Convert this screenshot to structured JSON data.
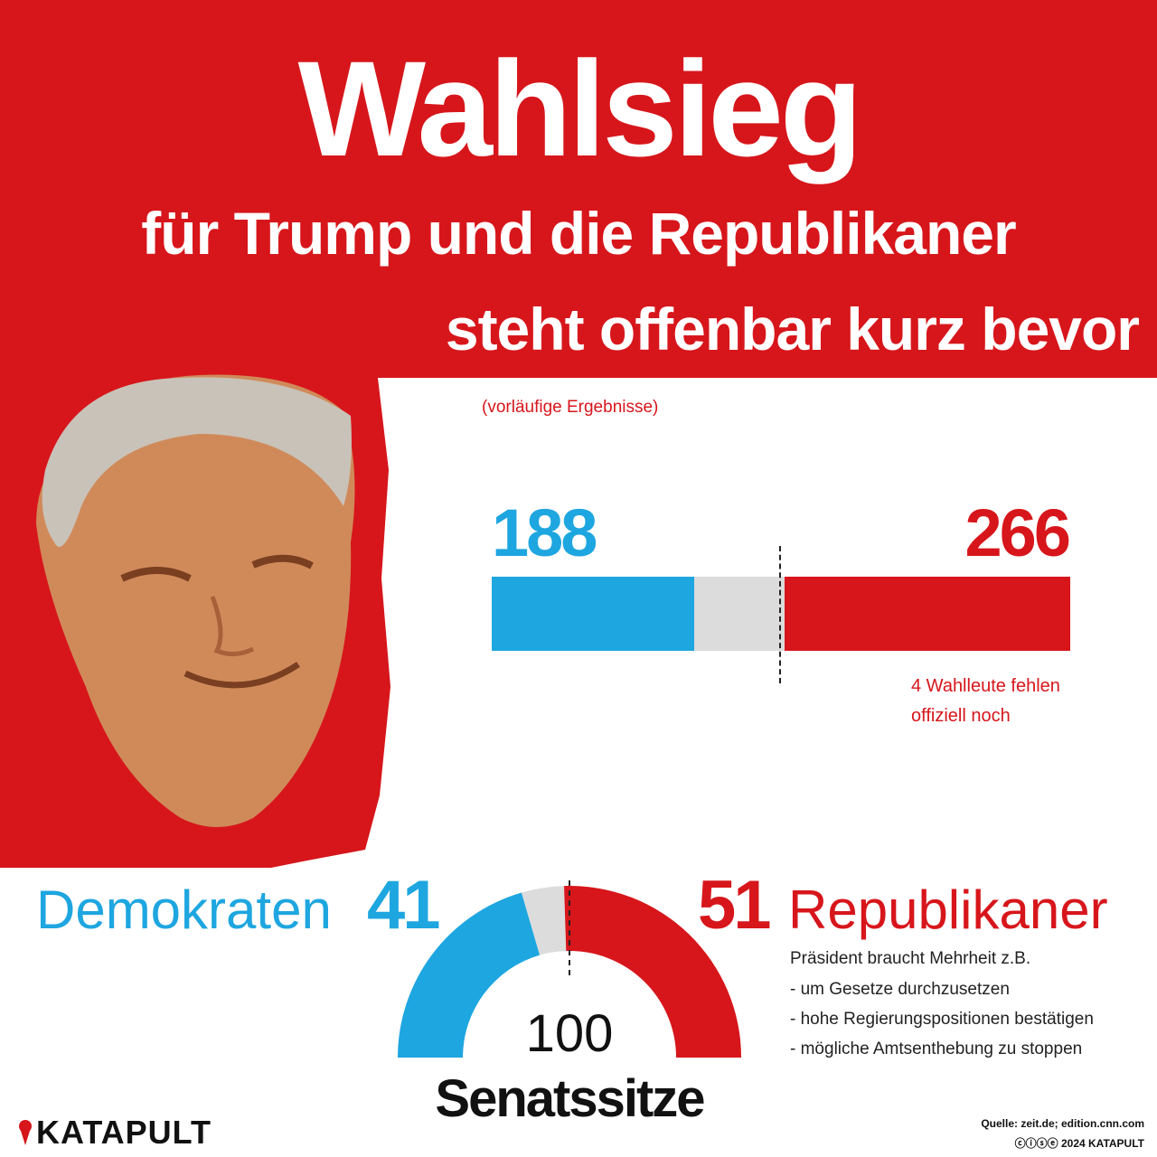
{
  "headline": {
    "main": "Wahlsieg",
    "line1": "für Trump und die Republikaner",
    "line2": "steht offenbar kurz bevor"
  },
  "colors": {
    "red": "#d7161b",
    "blue": "#1ea6e0",
    "grey": "#dcdcdc"
  },
  "portrait": {
    "icon": "trump-portrait"
  },
  "chart_data": [
    {
      "type": "bar",
      "subtitle": "(vorläufige Ergebnisse)",
      "series": [
        {
          "name": "Demokraten",
          "value": 188,
          "color": "#1ea6e0"
        },
        {
          "name": "",
          "value": 84,
          "color": "#dcdcdc"
        },
        {
          "name": "Republikaner",
          "value": 266,
          "color": "#d7161b"
        }
      ],
      "total": 538,
      "majority": 270,
      "labels": {
        "dem": "188",
        "rep": "266"
      },
      "annotation": [
        "4 Wahlleute fehlen",
        "offiziell noch"
      ]
    },
    {
      "type": "pie",
      "style": "semicircle",
      "series": [
        {
          "name": "Demokraten",
          "value": 41,
          "color": "#1ea6e0"
        },
        {
          "name": "",
          "value": 8,
          "color": "#dcdcdc"
        },
        {
          "name": "Republikaner",
          "value": 51,
          "color": "#d7161b"
        }
      ],
      "total": 100,
      "labels": {
        "dem_name": "Demokraten",
        "dem_value": "41",
        "rep_value": "51",
        "rep_name": "Republikaner",
        "total": "100",
        "caption": "Senatssitze"
      }
    }
  ],
  "info": {
    "lines": [
      "Präsident braucht Mehrheit z.B.",
      "- um Gesetze durchzusetzen",
      "- hohe Regierungspositionen bestätigen",
      "- mögliche Amtsenthebung zu stoppen"
    ]
  },
  "footer": {
    "brand": "KATAPULT",
    "brand_icon": "katapult-icon",
    "source": "Quelle: zeit.de; edition.cnn.com",
    "license": "ⓒⓘⓢⓔ 2024 KATAPULT"
  }
}
